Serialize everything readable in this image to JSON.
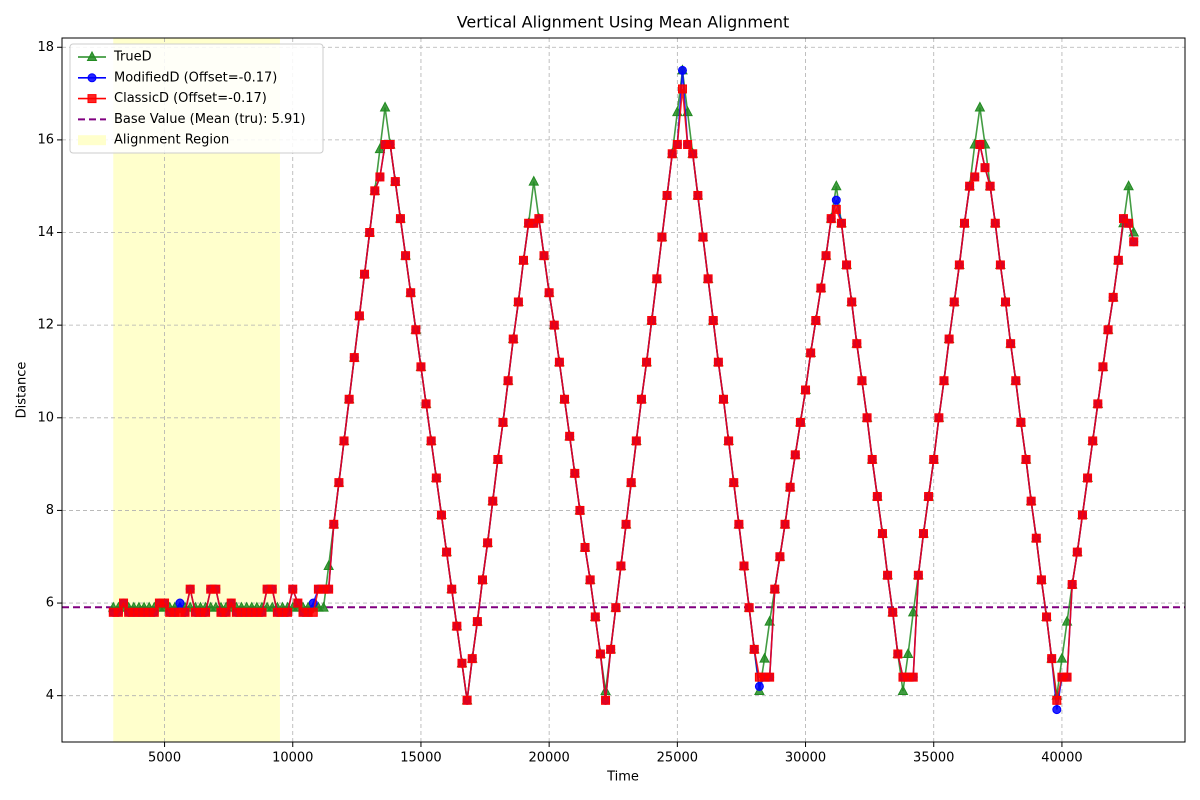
{
  "chart_data": {
    "type": "line",
    "title": "Vertical Alignment Using Mean Alignment",
    "x_label": "Time",
    "y_label": "Distance",
    "xlim": [
      1000,
      44800
    ],
    "ylim": [
      3,
      18.2
    ],
    "xticks": [
      5000,
      10000,
      15000,
      20000,
      25000,
      30000,
      35000,
      40000
    ],
    "yticks": [
      4,
      6,
      8,
      10,
      12,
      14,
      16,
      18
    ],
    "grid": true,
    "legend": "upper left",
    "x": [
      3000,
      3200,
      3400,
      3600,
      3800,
      4000,
      4200,
      4400,
      4600,
      4800,
      5000,
      5200,
      5400,
      5600,
      5800,
      6000,
      6200,
      6400,
      6600,
      6800,
      7000,
      7200,
      7400,
      7600,
      7800,
      8000,
      8200,
      8400,
      8600,
      8800,
      9000,
      9200,
      9400,
      9600,
      9800,
      10000,
      10200,
      10400,
      10600,
      10800,
      11000,
      11200,
      11400,
      11600,
      11800,
      12000,
      12200,
      12400,
      12600,
      12800,
      13000,
      13200,
      13400,
      13600,
      13800,
      14000,
      14200,
      14400,
      14600,
      14800,
      15000,
      15200,
      15400,
      15600,
      15800,
      16000,
      16200,
      16400,
      16600,
      16800,
      17000,
      17200,
      17400,
      17600,
      17800,
      18000,
      18200,
      18400,
      18600,
      18800,
      19000,
      19200,
      19400,
      19600,
      19800,
      20000,
      20200,
      20400,
      20600,
      20800,
      21000,
      21200,
      21400,
      21600,
      21800,
      22000,
      22200,
      22400,
      22600,
      22800,
      23000,
      23200,
      23400,
      23600,
      23800,
      24000,
      24200,
      24400,
      24600,
      24800,
      25000,
      25200,
      25400,
      25600,
      25800,
      26000,
      26200,
      26400,
      26600,
      26800,
      27000,
      27200,
      27400,
      27600,
      27800,
      28000,
      28200,
      28400,
      28600,
      28800,
      29000,
      29200,
      29400,
      29600,
      29800,
      30000,
      30200,
      30400,
      30600,
      30800,
      31000,
      31200,
      31400,
      31600,
      31800,
      32000,
      32200,
      32400,
      32600,
      32800,
      33000,
      33200,
      33400,
      33600,
      33800,
      34000,
      34200,
      34400,
      34600,
      34800,
      35000,
      35200,
      35400,
      35600,
      35800,
      36000,
      36200,
      36400,
      36600,
      36800,
      37000,
      37200,
      37400,
      37600,
      37800,
      38000,
      38200,
      38400,
      38600,
      38800,
      39000,
      39200,
      39400,
      39600,
      39800,
      40000,
      40200,
      40400,
      40600,
      40800,
      41000,
      41200,
      41400,
      41600,
      41800,
      42000,
      42200,
      42400,
      42600,
      42800
    ],
    "series": [
      {
        "name": "TrueD",
        "color": "#228b22",
        "marker": "triangle",
        "values": [
          5.9,
          5.9,
          5.9,
          5.9,
          5.9,
          5.9,
          5.9,
          5.9,
          5.9,
          5.9,
          5.9,
          5.9,
          5.9,
          5.9,
          5.9,
          5.9,
          5.9,
          5.9,
          5.9,
          5.9,
          5.9,
          5.9,
          5.9,
          5.9,
          5.9,
          5.9,
          5.9,
          5.9,
          5.9,
          5.9,
          5.9,
          5.9,
          5.9,
          5.9,
          5.9,
          5.9,
          5.9,
          5.9,
          5.9,
          5.9,
          5.9,
          5.9,
          6.8,
          7.7,
          8.6,
          9.5,
          10.4,
          11.3,
          12.2,
          13.1,
          14.0,
          14.9,
          15.8,
          16.7,
          15.9,
          15.1,
          14.3,
          13.5,
          12.7,
          11.9,
          11.1,
          10.3,
          9.5,
          8.7,
          7.9,
          7.1,
          6.3,
          5.5,
          4.7,
          3.9,
          4.8,
          5.6,
          6.5,
          7.3,
          8.2,
          9.1,
          9.9,
          10.8,
          11.7,
          12.5,
          13.4,
          14.2,
          15.1,
          14.3,
          13.5,
          12.7,
          12.0,
          11.2,
          10.4,
          9.6,
          8.8,
          8.0,
          7.2,
          6.5,
          5.7,
          4.9,
          4.1,
          5.0,
          5.9,
          6.8,
          7.7,
          8.6,
          9.5,
          10.4,
          11.2,
          12.1,
          13.0,
          13.9,
          14.8,
          15.7,
          16.6,
          17.5,
          16.6,
          15.7,
          14.8,
          13.9,
          13.0,
          12.1,
          11.2,
          10.4,
          9.5,
          8.6,
          7.7,
          6.8,
          5.9,
          5.0,
          4.1,
          4.8,
          5.6,
          6.3,
          7.0,
          7.7,
          8.5,
          9.2,
          9.9,
          10.6,
          11.4,
          12.1,
          12.8,
          13.5,
          14.3,
          15.0,
          14.2,
          13.3,
          12.5,
          11.6,
          10.8,
          10.0,
          9.1,
          8.3,
          7.5,
          6.6,
          5.8,
          4.9,
          4.1,
          4.9,
          5.8,
          6.6,
          7.5,
          8.3,
          9.1,
          10.0,
          10.8,
          11.7,
          12.5,
          13.3,
          14.2,
          15.0,
          15.9,
          16.7,
          15.9,
          15.0,
          14.2,
          13.3,
          12.5,
          11.6,
          10.8,
          9.9,
          9.1,
          8.2,
          7.4,
          6.5,
          5.7,
          4.8,
          4.0,
          4.8,
          5.6,
          6.4,
          7.1,
          7.9,
          8.7,
          9.5,
          10.3,
          11.1,
          11.9,
          12.6,
          13.4,
          14.2,
          15.0,
          14.0
        ]
      },
      {
        "name": "ModifiedD (Offset=-0.17)",
        "color": "#0000ff",
        "marker": "circle",
        "values": [
          5.8,
          5.8,
          6.0,
          5.8,
          5.8,
          5.8,
          5.8,
          5.8,
          5.8,
          6.0,
          6.0,
          5.8,
          5.8,
          6.0,
          5.8,
          6.3,
          5.8,
          5.8,
          5.8,
          6.3,
          6.3,
          5.8,
          5.8,
          6.0,
          5.8,
          5.8,
          5.8,
          5.8,
          5.8,
          5.8,
          6.3,
          6.3,
          5.8,
          5.8,
          5.8,
          6.3,
          6.0,
          5.8,
          5.8,
          6.0,
          6.3,
          6.3,
          6.3,
          7.7,
          8.6,
          9.5,
          10.4,
          11.3,
          12.2,
          13.1,
          14.0,
          14.9,
          15.2,
          15.9,
          15.9,
          15.1,
          14.3,
          13.5,
          12.7,
          11.9,
          11.1,
          10.3,
          9.5,
          8.7,
          7.9,
          7.1,
          6.3,
          5.5,
          4.7,
          3.9,
          4.8,
          5.6,
          6.5,
          7.3,
          8.2,
          9.1,
          9.9,
          10.8,
          11.7,
          12.5,
          13.4,
          14.2,
          14.2,
          14.3,
          13.5,
          12.7,
          12.0,
          11.2,
          10.4,
          9.6,
          8.8,
          8.0,
          7.2,
          6.5,
          5.7,
          4.9,
          3.9,
          5.0,
          5.9,
          6.8,
          7.7,
          8.6,
          9.5,
          10.4,
          11.2,
          12.1,
          13.0,
          13.9,
          14.8,
          15.7,
          15.9,
          17.5,
          15.9,
          15.7,
          14.8,
          13.9,
          13.0,
          12.1,
          11.2,
          10.4,
          9.5,
          8.6,
          7.7,
          6.8,
          5.9,
          5.0,
          4.2,
          4.4,
          4.4,
          6.3,
          7.0,
          7.7,
          8.5,
          9.2,
          9.9,
          10.6,
          11.4,
          12.1,
          12.8,
          13.5,
          14.3,
          14.7,
          14.2,
          13.3,
          12.5,
          11.6,
          10.8,
          10.0,
          9.1,
          8.3,
          7.5,
          6.6,
          5.8,
          4.9,
          4.4,
          4.4,
          4.4,
          6.6,
          7.5,
          8.3,
          9.1,
          10.0,
          10.8,
          11.7,
          12.5,
          13.3,
          14.2,
          15.0,
          15.2,
          15.9,
          15.4,
          15.0,
          14.2,
          13.3,
          12.5,
          11.6,
          10.8,
          9.9,
          9.1,
          8.2,
          7.4,
          6.5,
          5.7,
          4.8,
          3.7,
          4.4,
          4.4,
          6.4,
          7.1,
          7.9,
          8.7,
          9.5,
          10.3,
          11.1,
          11.9,
          12.6,
          13.4,
          14.3,
          14.2,
          13.8
        ]
      },
      {
        "name": "ClassicD (Offset=-0.17)",
        "color": "#ff0000",
        "marker": "square",
        "values": [
          5.8,
          5.8,
          6.0,
          5.8,
          5.8,
          5.8,
          5.8,
          5.8,
          5.8,
          6.0,
          6.0,
          5.8,
          5.8,
          5.8,
          5.8,
          6.3,
          5.8,
          5.8,
          5.8,
          6.3,
          6.3,
          5.8,
          5.8,
          6.0,
          5.8,
          5.8,
          5.8,
          5.8,
          5.8,
          5.8,
          6.3,
          6.3,
          5.8,
          5.8,
          5.8,
          6.3,
          6.0,
          5.8,
          5.8,
          5.8,
          6.3,
          6.3,
          6.3,
          7.7,
          8.6,
          9.5,
          10.4,
          11.3,
          12.2,
          13.1,
          14.0,
          14.9,
          15.2,
          15.9,
          15.9,
          15.1,
          14.3,
          13.5,
          12.7,
          11.9,
          11.1,
          10.3,
          9.5,
          8.7,
          7.9,
          7.1,
          6.3,
          5.5,
          4.7,
          3.9,
          4.8,
          5.6,
          6.5,
          7.3,
          8.2,
          9.1,
          9.9,
          10.8,
          11.7,
          12.5,
          13.4,
          14.2,
          14.2,
          14.3,
          13.5,
          12.7,
          12.0,
          11.2,
          10.4,
          9.6,
          8.8,
          8.0,
          7.2,
          6.5,
          5.7,
          4.9,
          3.9,
          5.0,
          5.9,
          6.8,
          7.7,
          8.6,
          9.5,
          10.4,
          11.2,
          12.1,
          13.0,
          13.9,
          14.8,
          15.7,
          15.9,
          17.1,
          15.9,
          15.7,
          14.8,
          13.9,
          13.0,
          12.1,
          11.2,
          10.4,
          9.5,
          8.6,
          7.7,
          6.8,
          5.9,
          5.0,
          4.4,
          4.4,
          4.4,
          6.3,
          7.0,
          7.7,
          8.5,
          9.2,
          9.9,
          10.6,
          11.4,
          12.1,
          12.8,
          13.5,
          14.3,
          14.5,
          14.2,
          13.3,
          12.5,
          11.6,
          10.8,
          10.0,
          9.1,
          8.3,
          7.5,
          6.6,
          5.8,
          4.9,
          4.4,
          4.4,
          4.4,
          6.6,
          7.5,
          8.3,
          9.1,
          10.0,
          10.8,
          11.7,
          12.5,
          13.3,
          14.2,
          15.0,
          15.2,
          15.9,
          15.4,
          15.0,
          14.2,
          13.3,
          12.5,
          11.6,
          10.8,
          9.9,
          9.1,
          8.2,
          7.4,
          6.5,
          5.7,
          4.8,
          3.9,
          4.4,
          4.4,
          6.4,
          7.1,
          7.9,
          8.7,
          9.5,
          10.3,
          11.1,
          11.9,
          12.6,
          13.4,
          14.3,
          14.2,
          13.8
        ]
      }
    ],
    "hline": {
      "name": "Base Value (Mean (tru): 5.91)",
      "value": 5.91,
      "color": "#800080"
    },
    "region": {
      "name": "Alignment Region",
      "x": [
        3000,
        9500
      ],
      "color": "#ffffcc"
    }
  }
}
